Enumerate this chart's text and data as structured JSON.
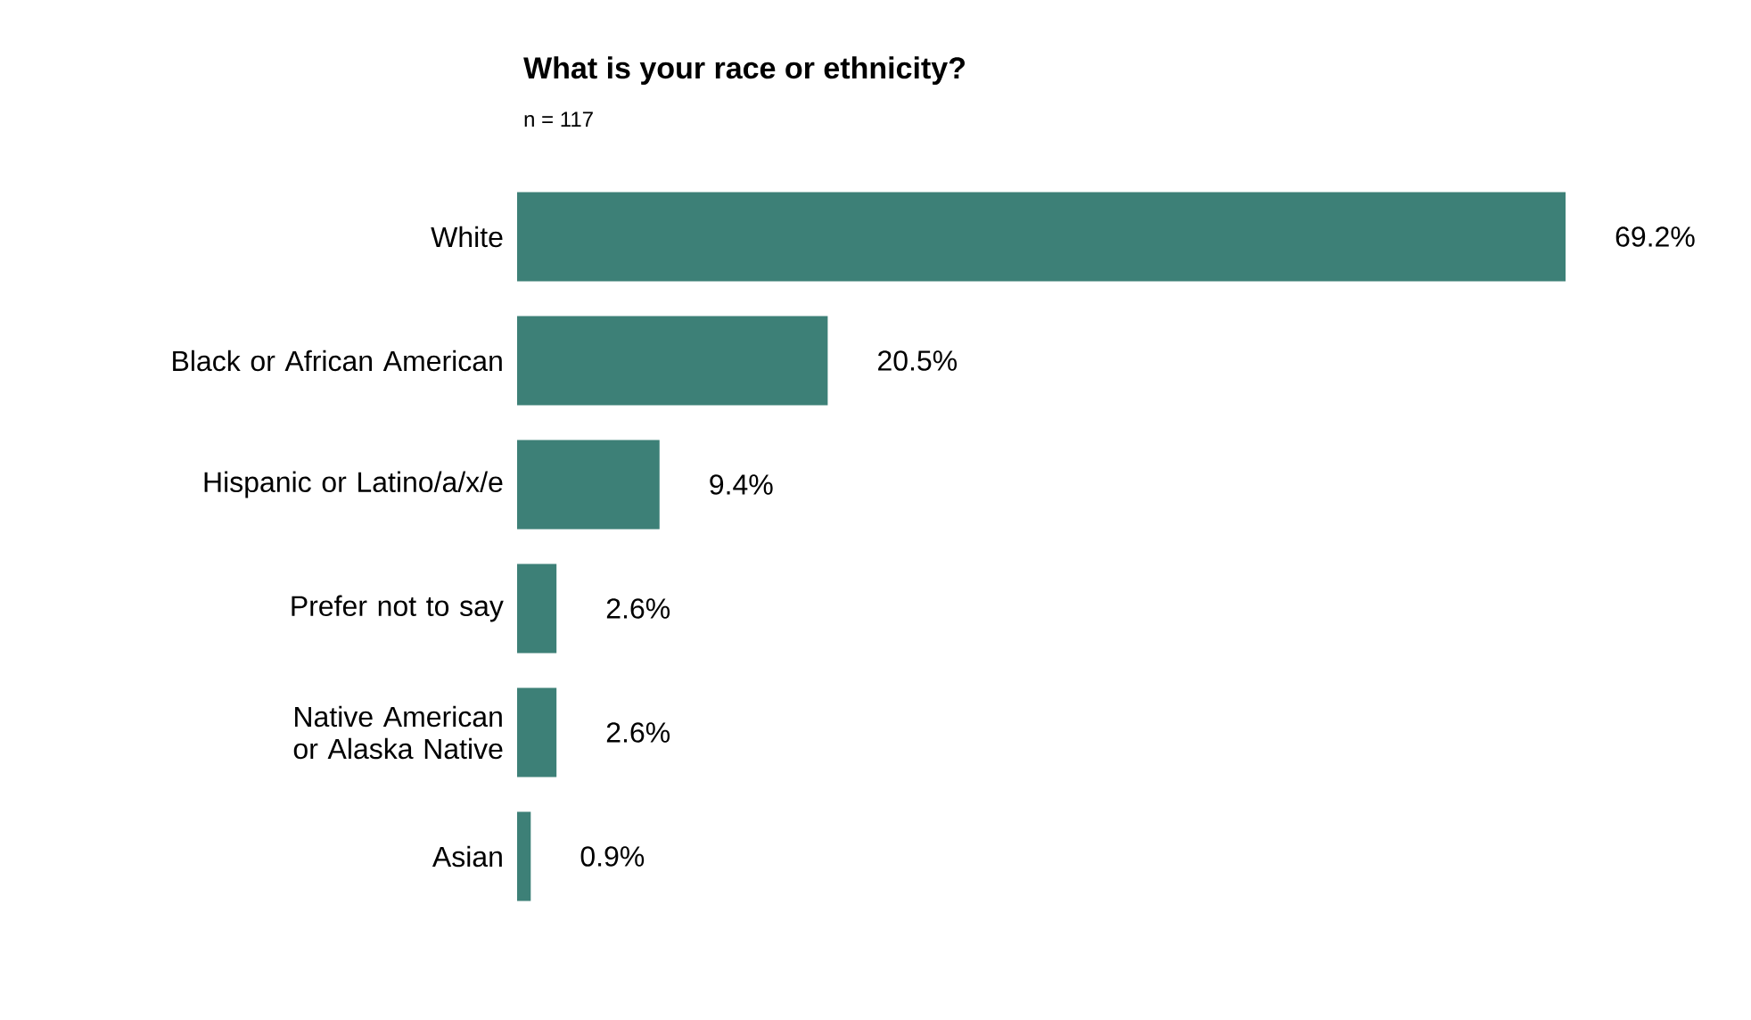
{
  "chart_data": {
    "type": "bar",
    "orientation": "horizontal",
    "title": "What is your race or ethnicity?",
    "subtitle": "n = 117",
    "categories": [
      "White",
      "Black or African American",
      "Hispanic or Latino/a/x/e",
      "Prefer not to say",
      "Native American or Alaska Native",
      "Asian"
    ],
    "values": [
      69.2,
      20.5,
      9.4,
      2.6,
      2.6,
      0.9
    ],
    "value_labels": [
      "69.2%",
      "20.5%",
      "9.4%",
      "2.6%",
      "2.6%",
      "0.9%"
    ],
    "color": "#3d8077"
  }
}
